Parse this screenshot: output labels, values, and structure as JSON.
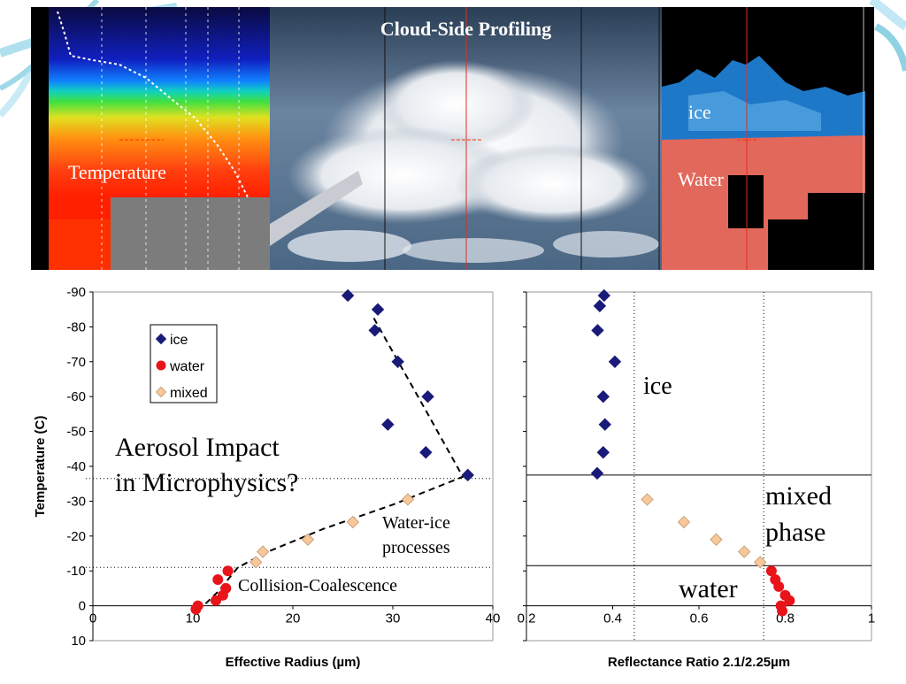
{
  "banner": {
    "title": "Cloud-Side Profiling",
    "left_label": "Temperature",
    "right_label_ice": "ice",
    "right_label_water": "Water"
  },
  "colors": {
    "ice": "#1a1a7a",
    "water": "#e8141a",
    "mixed": "#f9c89a",
    "mixed_stroke": "#c9a27a"
  },
  "chart_data": [
    {
      "type": "scatter",
      "title": "",
      "xlabel": "Effective Radius (µm)",
      "ylabel": "Temperature (C)",
      "xlim": [
        0,
        40
      ],
      "ylim": [
        10,
        -90
      ],
      "xticks": [
        "0",
        "10",
        "20",
        "30",
        "40"
      ],
      "yticks": [
        "-90",
        "-80",
        "-70",
        "-60",
        "-50",
        "-40",
        "-30",
        "-20",
        "-10",
        "0",
        "10"
      ],
      "legend": {
        "position": "top-left",
        "entries": [
          "ice",
          "water",
          "mixed"
        ]
      },
      "series": [
        {
          "name": "ice",
          "marker": "diamond",
          "points": [
            [
              25.5,
              -89
            ],
            [
              28.5,
              -85
            ],
            [
              28.2,
              -79
            ],
            [
              30.5,
              -70
            ],
            [
              33.5,
              -60
            ],
            [
              29.5,
              -52
            ],
            [
              33.3,
              -44
            ],
            [
              37.5,
              -37.5
            ]
          ]
        },
        {
          "name": "water",
          "marker": "circle",
          "points": [
            [
              13.5,
              -10
            ],
            [
              12.5,
              -7.5
            ],
            [
              13.3,
              -5
            ],
            [
              13.0,
              -3
            ],
            [
              12.3,
              -1.5
            ],
            [
              10.5,
              0
            ],
            [
              10.3,
              1
            ]
          ]
        },
        {
          "name": "mixed",
          "marker": "diamond",
          "points": [
            [
              31.5,
              -30.5
            ],
            [
              26.0,
              -24
            ],
            [
              21.5,
              -19
            ],
            [
              17.0,
              -15.5
            ],
            [
              16.3,
              -12.5
            ]
          ]
        }
      ],
      "fit_line": [
        [
          10.5,
          1.5
        ],
        [
          12.5,
          -4
        ],
        [
          14.5,
          -11
        ],
        [
          17.5,
          -15.5
        ],
        [
          23.0,
          -22
        ],
        [
          30.0,
          -29
        ],
        [
          37.0,
          -37
        ],
        [
          33.5,
          -55
        ],
        [
          28.0,
          -83
        ]
      ],
      "reference_lines": [
        -36.5,
        -11
      ],
      "annotations": {
        "aerosol_line1": "Aerosol Impact",
        "aerosol_line2": "in Microphysics?",
        "water_ice_line1": "Water-ice",
        "water_ice_line2": "processes",
        "collision": "Collision-Coalescence"
      }
    },
    {
      "type": "scatter",
      "title": "",
      "xlabel": "Reflectance Ratio 2.1/2.25µm",
      "ylabel": "",
      "xlim": [
        0.2,
        1.0
      ],
      "ylim": [
        10,
        -90
      ],
      "xticks": [
        "0.2",
        "0.4",
        "0.6",
        "0.8",
        "1"
      ],
      "series": [
        {
          "name": "ice",
          "marker": "diamond",
          "points": [
            [
              0.38,
              -89
            ],
            [
              0.37,
              -86
            ],
            [
              0.365,
              -79
            ],
            [
              0.405,
              -70
            ],
            [
              0.378,
              -60
            ],
            [
              0.382,
              -52
            ],
            [
              0.378,
              -44
            ],
            [
              0.364,
              -38
            ]
          ]
        },
        {
          "name": "mixed",
          "marker": "diamond",
          "points": [
            [
              0.48,
              -30.5
            ],
            [
              0.565,
              -24
            ],
            [
              0.64,
              -19
            ],
            [
              0.705,
              -15.5
            ],
            [
              0.742,
              -12.5
            ]
          ]
        },
        {
          "name": "water",
          "marker": "circle",
          "points": [
            [
              0.768,
              -10
            ],
            [
              0.777,
              -7.5
            ],
            [
              0.785,
              -5.5
            ],
            [
              0.8,
              -3
            ],
            [
              0.81,
              -1.5
            ],
            [
              0.79,
              0
            ],
            [
              0.793,
              1.5
            ]
          ]
        }
      ],
      "dotted_verticals": [
        0.45,
        0.75
      ],
      "solid_horizontals": [
        -37.5,
        -11.5
      ],
      "region_labels": {
        "ice": "ice",
        "mixed_line1": "mixed",
        "mixed_line2": "phase",
        "water": "water"
      }
    }
  ]
}
